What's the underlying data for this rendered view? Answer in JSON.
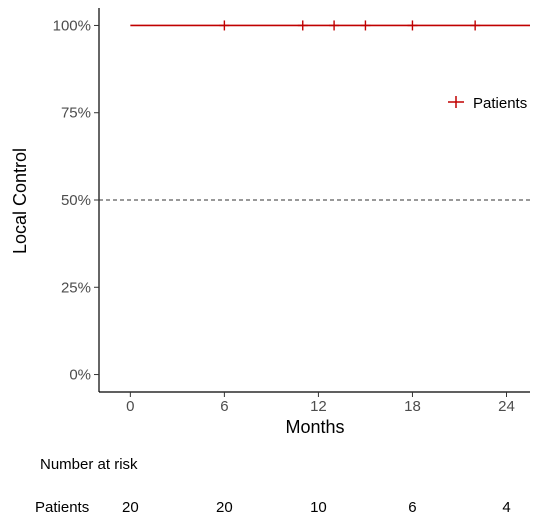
{
  "chart_data": {
    "type": "line",
    "subtype": "kaplan-meier",
    "xlabel": "Months",
    "ylabel": "Local Control",
    "xlim": [
      -2,
      25.5
    ],
    "ylim": [
      -0.05,
      1.05
    ],
    "x_ticks": [
      0,
      6,
      12,
      18,
      24
    ],
    "x_tick_labels": [
      "0",
      "6",
      "12",
      "18",
      "24"
    ],
    "y_ticks": [
      0,
      0.25,
      0.5,
      0.75,
      1.0
    ],
    "y_tick_labels": [
      "0%",
      "25%",
      "50%",
      "75%",
      "100%"
    ],
    "grid": false,
    "reference_line": {
      "y": 0.5,
      "style": "dashed"
    },
    "legend": {
      "position": "right",
      "entries": [
        "Patients"
      ]
    },
    "series": [
      {
        "name": "Patients",
        "color": "#c00000",
        "x": [
          0,
          25.5
        ],
        "y": [
          1.0,
          1.0
        ],
        "censor_times": [
          6,
          11,
          13,
          15,
          18,
          22
        ]
      }
    ],
    "risk_table": {
      "title": "Number at risk",
      "rows": [
        {
          "label": "Patients",
          "times": [
            0,
            6,
            12,
            18,
            24
          ],
          "values": [
            "20",
            "20",
            "10",
            "6",
            "4"
          ]
        }
      ]
    }
  }
}
